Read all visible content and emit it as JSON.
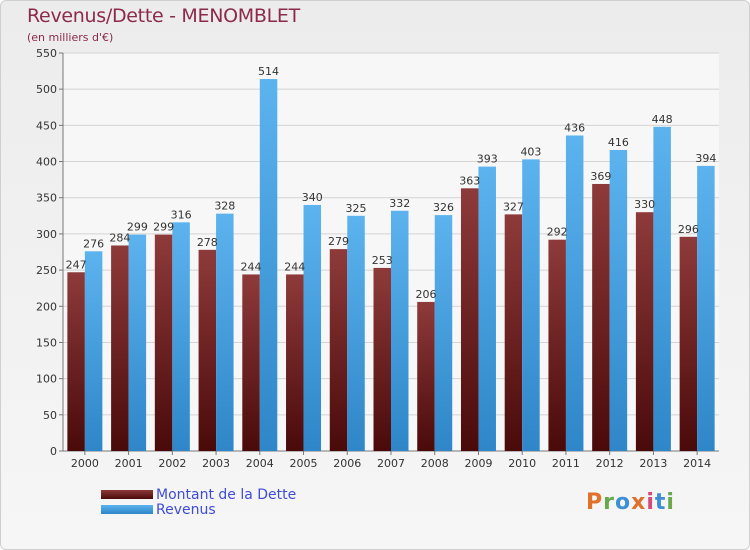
{
  "title": "Revenus/Dette - MENOMBLET",
  "subtitle": "(en milliers d'€)",
  "logo_text": "Proxiti",
  "logo_colors": [
    "#e0712b",
    "#6aa84f",
    "#3f8fd6",
    "#e0712b",
    "#d64a7a",
    "#3f8fd6",
    "#6aa84f"
  ],
  "colors": {
    "dette": "#6b1c1c",
    "revenus": "#3d97dc",
    "title": "#8b2a4a",
    "legend_text": "#3f4cd6"
  },
  "chart_data": {
    "type": "bar",
    "title": "Revenus/Dette - MENOMBLET",
    "ylabel": "(en milliers d'€)",
    "xlabel": "",
    "ylim": [
      0,
      550
    ],
    "yticks": [
      0,
      50,
      100,
      150,
      200,
      250,
      300,
      350,
      400,
      450,
      500,
      550
    ],
    "grid": true,
    "legend_position": "bottom-left",
    "categories": [
      "2000",
      "2001",
      "2002",
      "2003",
      "2004",
      "2005",
      "2006",
      "2007",
      "2008",
      "2009",
      "2010",
      "2011",
      "2012",
      "2013",
      "2014"
    ],
    "series": [
      {
        "name": "Montant de la Dette",
        "values": [
          247,
          284,
          299,
          278,
          244,
          244,
          279,
          253,
          206,
          363,
          327,
          292,
          369,
          330,
          296
        ]
      },
      {
        "name": "Revenus",
        "values": [
          276,
          299,
          316,
          328,
          514,
          340,
          325,
          332,
          326,
          393,
          403,
          436,
          416,
          448,
          394
        ]
      }
    ]
  }
}
